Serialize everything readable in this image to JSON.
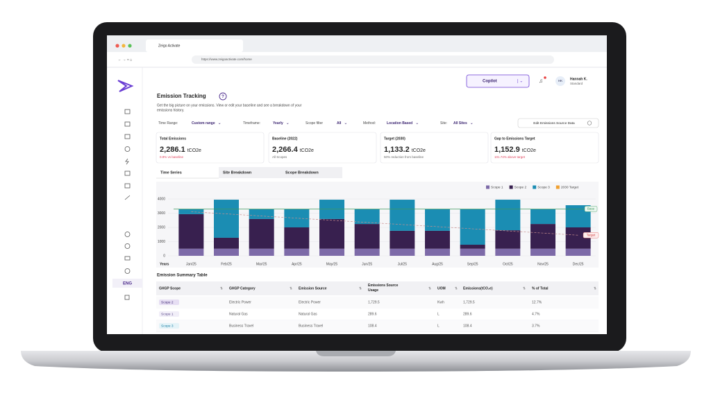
{
  "browser": {
    "tab_title": "Zeigo Activate",
    "url": "https://www.zeigoactivate.com/home"
  },
  "header": {
    "copilot": "Copilot",
    "user_initials": "HK",
    "user_name": "Hannah K.",
    "user_role": "Standard"
  },
  "sidebar": {
    "language": "ENG"
  },
  "page": {
    "title": "Emission Tracking",
    "help": "?",
    "description_lines": [
      "Get the big picture on your emissions. View or edit your baseline and see a breakdown of your",
      "emissions history."
    ]
  },
  "filters": [
    {
      "label": "Time Range:",
      "value": "Custom range"
    },
    {
      "label": "Timeframe:",
      "value": "Yearly"
    },
    {
      "label": "Scope filter",
      "value": "All"
    },
    {
      "label": "Method:",
      "value": "Location Based"
    },
    {
      "label": "Site:",
      "value": "All Sites"
    }
  ],
  "edit_button": "Edit Emissions Source Data",
  "kpis": [
    {
      "label": "Total Emissions",
      "value": "2,286.1",
      "unit": "tCO2e",
      "note": "0.9% vs baseline",
      "alert": true
    },
    {
      "label": "Baseline (2022)",
      "value": "2,266.4",
      "unit": "tCO2e",
      "note": "All Scopes",
      "alert": false
    },
    {
      "label": "Target (2030)",
      "value": "1,133.2",
      "unit": "tCO2e",
      "note": "50% reduction from baseline",
      "alert": false
    },
    {
      "label": "Gap to Emissions Target",
      "value": "1,152.9",
      "unit": "tCO2e",
      "note": "101.74% above target",
      "alert": true
    }
  ],
  "tabs": [
    "Time Series",
    "Site Breakdown",
    "Scope Breakdown"
  ],
  "chart_data": {
    "type": "bar",
    "stacked": true,
    "x_label": "Years",
    "categories": [
      "Jan/25",
      "Feb/25",
      "Mar/25",
      "Apr/25",
      "May/25",
      "Jun/25",
      "Jul/25",
      "Aug/25",
      "Sep/25",
      "Oct/25",
      "Nov/25",
      "Dec/25"
    ],
    "series": [
      {
        "name": "Scope 1",
        "color": "#7d6aa8",
        "values": [
          500,
          500,
          500,
          500,
          500,
          500,
          500,
          500,
          500,
          500,
          500,
          500
        ]
      },
      {
        "name": "Scope 2",
        "color": "#38204f",
        "values": [
          2430,
          770,
          2090,
          1500,
          2090,
          1740,
          1260,
          1260,
          280,
          1300,
          1740,
          1500
        ]
      },
      {
        "name": "Scope 3",
        "color": "#1b8db3",
        "values": [
          340,
          2680,
          680,
          1270,
          1360,
          1030,
          2190,
          1510,
          2490,
          2150,
          1030,
          1560
        ]
      },
      {
        "name": "2030 Target",
        "color": "#f0a030",
        "kind": "line",
        "label": "Target",
        "values": [
          3100,
          2950,
          2800,
          2650,
          2500,
          2350,
          2200,
          2050,
          1900,
          1750,
          1600,
          1450
        ]
      }
    ],
    "base": {
      "label": "Base",
      "value": 3300,
      "color": "#3f9a5e"
    },
    "ylim": [
      0,
      4000
    ],
    "yticks": [
      0,
      1000,
      2000,
      3000,
      4000
    ],
    "legend": "top-right"
  },
  "table": {
    "title": "Emission Summary Table",
    "columns": [
      "GHGP Scope",
      "GHGP Category",
      "Emission Source",
      "Emissions Source Usage",
      "UOM",
      "Emissions(tCO₂e)",
      "% of Total"
    ],
    "rows": [
      [
        "Scope 2",
        "Electric Power",
        "Electric Power",
        "1,729.5",
        "Kwh",
        "1,729.5",
        "12.7%"
      ],
      [
        "Scope 1",
        "Natural Gas",
        "Natural Gas",
        "289.6",
        "L",
        "289.6",
        "4.7%"
      ],
      [
        "Scope 3",
        "Business Travel",
        "Business Travel",
        "108.4",
        "L",
        "108.4",
        "3.7%"
      ]
    ]
  }
}
